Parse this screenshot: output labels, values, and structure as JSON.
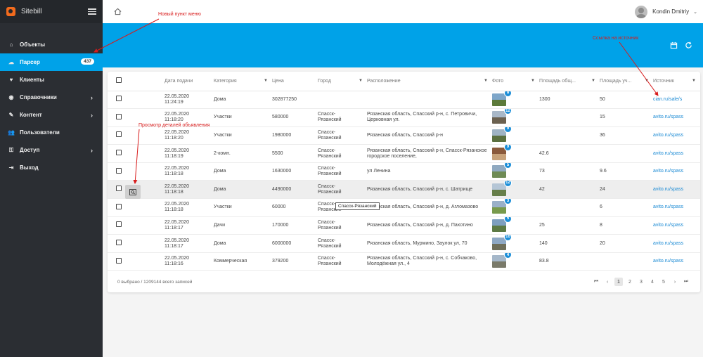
{
  "app": {
    "name": "Sitebill"
  },
  "menu": [
    {
      "label": "Объекты",
      "icon": "home-icon",
      "glyph": "⌂"
    },
    {
      "label": "Парсер",
      "icon": "cloud-icon",
      "glyph": "☁",
      "badge": "437",
      "active": true
    },
    {
      "label": "Клиенты",
      "icon": "heart-icon",
      "glyph": "♥"
    },
    {
      "label": "Справочники",
      "icon": "globe-icon",
      "glyph": "◉",
      "chevron": true
    },
    {
      "label": "Контент",
      "icon": "edit-icon",
      "glyph": "✎",
      "chevron": true
    },
    {
      "label": "Пользователи",
      "icon": "users-icon",
      "glyph": "👥"
    },
    {
      "label": "Доступ",
      "icon": "key-icon",
      "glyph": "⚿",
      "chevron": true
    },
    {
      "label": "Выход",
      "icon": "logout-icon",
      "glyph": "⇥"
    }
  ],
  "topbar": {
    "user_name": "Kondin Dmitriy"
  },
  "table": {
    "columns": [
      "Дата подачи",
      "Категория",
      "Цена",
      "Город",
      "Расположение",
      "Фото",
      "Площадь общ...",
      "Площадь уч...",
      "Источник"
    ],
    "rows": [
      {
        "date": "22.05.2020",
        "time": "11:24:19",
        "category": "Дома",
        "price": "302877250",
        "city": "",
        "location": "",
        "photos": "8",
        "area_total": "1300",
        "area_plot": "50",
        "source": "cian.ru/sale/s"
      },
      {
        "date": "22.05.2020",
        "time": "11:18:20",
        "category": "Участки",
        "price": "580000",
        "city": "Спасск-Рязанский",
        "location": "Рязанская область, Спасский р-н, с. Петровичи, Церковная ул.",
        "photos": "12",
        "area_total": "",
        "area_plot": "15",
        "source": "avito.ru/spass"
      },
      {
        "date": "22.05.2020",
        "time": "11:18:20",
        "category": "Участки",
        "price": "1980000",
        "city": "Спасск-Рязанский",
        "location": "Рязанская область, Спасский р-н",
        "photos": "9",
        "area_total": "",
        "area_plot": "36",
        "source": "avito.ru/spass"
      },
      {
        "date": "22.05.2020",
        "time": "11:18:19",
        "category": "2-комн.",
        "price": "5500",
        "city": "Спасск-Рязанский",
        "location": "Рязанская область, Спасский р-н, Спасск-Рязанское городское поселение,",
        "photos": "9",
        "area_total": "42.6",
        "area_plot": "",
        "source": "avito.ru/spass"
      },
      {
        "date": "22.05.2020",
        "time": "11:18:18",
        "category": "Дома",
        "price": "1630000",
        "city": "Спасск-Рязанский",
        "location": "ул Ленина",
        "photos": "5",
        "area_total": "73",
        "area_plot": "9.6",
        "source": "avito.ru/spass"
      },
      {
        "date": "22.05.2020",
        "time": "11:18:18",
        "category": "Дома",
        "price": "4490000",
        "city": "Спасск-Рязанский",
        "location": "Рязанская область, Спасский р-н, с. Шатрище",
        "photos": "12",
        "area_total": "42",
        "area_plot": "24",
        "source": "avito.ru/spass"
      },
      {
        "date": "22.05.2020",
        "time": "11:18:18",
        "category": "Участки",
        "price": "60000",
        "city": "Спасск-Рязанский",
        "location": "Рязанская область, Спасский р-н, д. Агломазово",
        "photos": "3",
        "area_total": "",
        "area_plot": "6",
        "source": "avito.ru/spass"
      },
      {
        "date": "22.05.2020",
        "time": "11:18:17",
        "category": "Дачи",
        "price": "170000",
        "city": "Спасск-Рязанский",
        "location": "Рязанская область, Спасский р-н, д. Пахотино",
        "photos": "5",
        "area_total": "25",
        "area_plot": "8",
        "source": "avito.ru/spass"
      },
      {
        "date": "22.05.2020",
        "time": "11:18:17",
        "category": "Дома",
        "price": "6000000",
        "city": "Спасск-Рязанский",
        "location": "Рязанская область, Мурмино, Заулок ул, 70",
        "photos": "16",
        "area_total": "140",
        "area_plot": "20",
        "source": "avito.ru/spass"
      },
      {
        "date": "22.05.2020",
        "time": "11:18:16",
        "category": "Коммерческая",
        "price": "379200",
        "city": "Спасск-Рязанский",
        "location": "Рязанская область, Спасский р-н, с. Собчаково, Молодёжная ул., 4",
        "photos": "4",
        "area_total": "83.8",
        "area_plot": "",
        "source": "avito.ru/spass"
      }
    ]
  },
  "tooltip": "Спасск-Рязанский",
  "footer": {
    "info": "0 выбрано / 1209144 всего записей"
  },
  "pagination": {
    "pages": [
      "1",
      "2",
      "3",
      "4",
      "5"
    ],
    "current": "1"
  },
  "annotations": {
    "new_menu_item": "Новый пункт меню",
    "view_details": "Просмотр деталей объявления",
    "source_link": "Ссылка на источник"
  },
  "colors": {
    "accent": "#00a2e8",
    "sidebar": "#2b2e33",
    "annotation": "#d81b1b",
    "link": "#1a8ad4"
  }
}
